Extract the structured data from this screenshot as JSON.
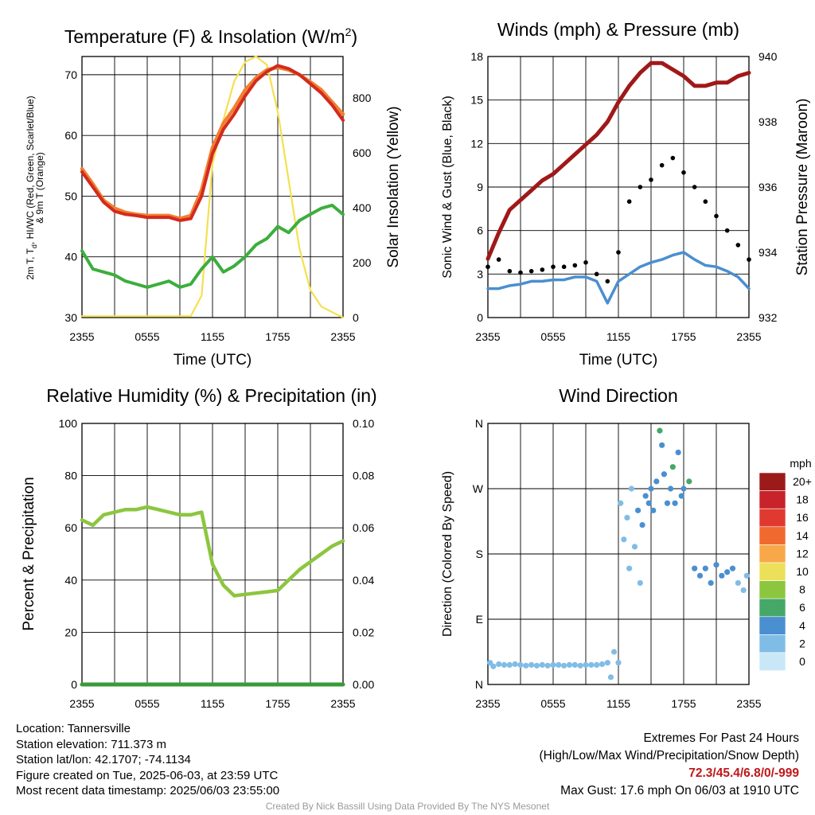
{
  "chart_data": [
    {
      "type": "line",
      "title": "Temperature (F) & Insolation (W/m²)",
      "xlabel": "Time (UTC)",
      "ylabel": "2m T, Td, HI/WC (Red, Green, Scarlet/Blue) & 9m T (Orange)",
      "ylabel_lines": [
        "2m T, T",
        "d",
        ", HI/WC (Red, Green, Scarlet/Blue)",
        "& 9m T (Orange)"
      ],
      "y2label": "Solar Insolation (Yellow)",
      "xticks": [
        "2355",
        "0555",
        "1155",
        "1755",
        "2355"
      ],
      "ylim": [
        30,
        73
      ],
      "yticks": [
        30,
        40,
        50,
        60,
        70
      ],
      "y2lim": [
        0,
        950
      ],
      "y2ticks": [
        0,
        200,
        400,
        600,
        800
      ],
      "x_hours": [
        0,
        1,
        2,
        3,
        4,
        5,
        6,
        7,
        8,
        9,
        10,
        11,
        12,
        13,
        14,
        15,
        16,
        17,
        18,
        19,
        20,
        21,
        22,
        23,
        24
      ],
      "series": [
        {
          "name": "2m T",
          "color": "#d42a1e",
          "axis": "left",
          "values": [
            54,
            51.5,
            49,
            47.5,
            47,
            46.8,
            46.5,
            46.5,
            46.5,
            46,
            46.3,
            50,
            57,
            61,
            63.5,
            66.5,
            69,
            70.5,
            71.5,
            71,
            70,
            68.5,
            67,
            65,
            62.5
          ]
        },
        {
          "name": "9m T",
          "color": "#f08030",
          "axis": "left",
          "values": [
            54.5,
            52,
            49.3,
            48,
            47.3,
            47,
            46.8,
            46.8,
            46.8,
            46.3,
            46.8,
            51,
            58,
            62,
            64.5,
            67.5,
            69.5,
            70.8,
            71.2,
            70.8,
            70,
            68.8,
            67.5,
            65.5,
            63.5
          ]
        },
        {
          "name": "Td",
          "color": "#3cae3c",
          "axis": "left",
          "values": [
            41,
            38,
            37.5,
            37,
            36,
            35.5,
            35,
            35.5,
            36,
            35,
            35.5,
            38,
            40,
            37.5,
            38.5,
            40,
            42,
            43,
            45,
            44,
            46,
            47,
            48,
            48.5,
            47
          ]
        },
        {
          "name": "Solar Insolation",
          "color": "#f5e050",
          "axis": "right",
          "values": [
            5,
            5,
            5,
            5,
            5,
            5,
            5,
            5,
            5,
            5,
            5,
            80,
            560,
            720,
            860,
            930,
            950,
            920,
            750,
            500,
            250,
            100,
            40,
            20,
            0
          ]
        }
      ]
    },
    {
      "type": "line",
      "title": "Winds (mph) & Pressure (mb)",
      "xlabel": "Time (UTC)",
      "ylabel": "Sonic Wind & Gust (Blue, Black)",
      "y2label": "Station Pressure (Maroon)",
      "xticks": [
        "2355",
        "0555",
        "1155",
        "1755",
        "2355"
      ],
      "ylim": [
        0,
        18
      ],
      "yticks": [
        0,
        3,
        6,
        9,
        12,
        15,
        18
      ],
      "y2lim": [
        932,
        940
      ],
      "y2ticks": [
        932,
        934,
        936,
        938,
        940
      ],
      "x_hours": [
        0,
        1,
        2,
        3,
        4,
        5,
        6,
        7,
        8,
        9,
        10,
        11,
        12,
        13,
        14,
        15,
        16,
        17,
        18,
        19,
        20,
        21,
        22,
        23,
        24
      ],
      "series": [
        {
          "name": "Sonic Wind",
          "color": "#4a8fd0",
          "axis": "left",
          "values": [
            2,
            2,
            2.2,
            2.3,
            2.5,
            2.5,
            2.6,
            2.6,
            2.8,
            2.8,
            2.5,
            1,
            2.5,
            3,
            3.5,
            3.8,
            4,
            4.3,
            4.5,
            4,
            3.6,
            3.5,
            3.2,
            2.8,
            2
          ]
        },
        {
          "name": "Gust",
          "color": "#000000",
          "axis": "left",
          "values": [
            3.5,
            4,
            3.2,
            3.1,
            3.2,
            3.3,
            3.5,
            3.5,
            3.6,
            3.8,
            3,
            2.5,
            4.5,
            8,
            9,
            9.5,
            10.5,
            11,
            10,
            9,
            8,
            7,
            6,
            5,
            4
          ]
        },
        {
          "name": "Station Pressure",
          "color": "#a01818",
          "axis": "right",
          "values": [
            933.8,
            934.6,
            935.3,
            935.6,
            935.9,
            936.2,
            936.4,
            936.7,
            937.0,
            937.3,
            937.6,
            938.0,
            938.6,
            939.1,
            939.5,
            939.8,
            939.8,
            939.6,
            939.4,
            939.1,
            939.1,
            939.2,
            939.2,
            939.4,
            939.5
          ]
        }
      ]
    },
    {
      "type": "line",
      "title": "Relative Humidity (%) & Precipitation (in)",
      "xlabel": "",
      "ylabel": "Percent & Precipitation",
      "xticks": [
        "2355",
        "0555",
        "1155",
        "1755",
        "2355"
      ],
      "ylim": [
        0,
        100
      ],
      "yticks": [
        0,
        20,
        40,
        60,
        80,
        100
      ],
      "y2lim": [
        0,
        0.1
      ],
      "y2ticks": [
        "0.00",
        "0.02",
        "0.04",
        "0.06",
        "0.08",
        "0.10"
      ],
      "x_hours": [
        0,
        1,
        2,
        3,
        4,
        5,
        6,
        7,
        8,
        9,
        10,
        11,
        12,
        13,
        14,
        15,
        16,
        17,
        18,
        19,
        20,
        21,
        22,
        23,
        24
      ],
      "series": [
        {
          "name": "Relative Humidity",
          "color": "#8cc63f",
          "axis": "left",
          "values": [
            63,
            61,
            65,
            66,
            67,
            67,
            68,
            67,
            66,
            65,
            65,
            66,
            46,
            38,
            34,
            34.5,
            35,
            35.5,
            36,
            40,
            44,
            47,
            50,
            53,
            55
          ]
        },
        {
          "name": "Precipitation",
          "color": "#3a9a3a",
          "axis": "right",
          "values": [
            0,
            0,
            0,
            0,
            0,
            0,
            0,
            0,
            0,
            0,
            0,
            0,
            0,
            0,
            0,
            0,
            0,
            0,
            0,
            0,
            0,
            0,
            0,
            0,
            0
          ]
        }
      ]
    },
    {
      "type": "scatter",
      "title": "Wind Direction",
      "xlabel": "",
      "ylabel": "Direction (Colored By Speed)",
      "xticks": [
        "2355",
        "0555",
        "1155",
        "1755",
        "2355"
      ],
      "ylim": [
        0,
        360
      ],
      "yticks": [
        "N",
        "E",
        "S",
        "W",
        "N"
      ],
      "legend_title": "mph",
      "legend_labels": [
        "20+",
        "18",
        "16",
        "14",
        "12",
        "10",
        "8",
        "6",
        "4",
        "2",
        "0"
      ],
      "legend_colors": [
        "#9b1b1b",
        "#c8222a",
        "#e03a30",
        "#f06a30",
        "#f8a848",
        "#ece05a",
        "#8cc63f",
        "#46a868",
        "#4a8fd0",
        "#80bde6",
        "#c8e8f8"
      ],
      "x_hours": [
        0.2,
        0.5,
        1,
        1.5,
        2,
        2.5,
        3,
        3.5,
        4,
        4.5,
        5,
        5.5,
        6,
        6.5,
        7,
        7.5,
        8,
        8.5,
        9,
        9.5,
        10,
        10.5,
        11,
        11.3,
        11.6,
        12,
        12.2,
        12.5,
        12.8,
        13,
        13.2,
        13.5,
        13.8,
        14,
        14.2,
        14.5,
        14.8,
        15,
        15.2,
        15.5,
        15.8,
        16,
        16.2,
        16.5,
        16.8,
        17,
        17.2,
        17.5,
        17.8,
        18,
        18.5,
        19,
        19.5,
        20,
        20.5,
        21,
        21.5,
        22,
        22.5,
        23,
        23.5,
        23.8
      ],
      "values": [
        30,
        25,
        28,
        27,
        27,
        28,
        27,
        26,
        27,
        26,
        27,
        26,
        27,
        27,
        26,
        27,
        27,
        26,
        27,
        27,
        27,
        28,
        30,
        10,
        45,
        30,
        250,
        200,
        230,
        160,
        270,
        190,
        240,
        140,
        220,
        260,
        250,
        270,
        240,
        280,
        350,
        330,
        290,
        250,
        270,
        300,
        250,
        320,
        260,
        270,
        280,
        160,
        150,
        160,
        140,
        165,
        150,
        155,
        160,
        140,
        130,
        150
      ],
      "speeds": [
        2,
        2,
        2,
        2,
        2,
        2,
        2,
        2,
        2,
        2,
        2,
        2,
        2,
        2,
        2,
        2,
        2,
        2,
        2,
        2,
        2,
        2,
        1,
        1,
        1,
        1,
        1,
        2,
        2,
        1,
        2,
        2,
        3,
        2,
        3,
        3,
        4,
        4,
        3,
        4,
        5,
        4,
        4,
        3,
        4,
        6,
        4,
        4,
        3,
        4,
        5,
        4,
        4,
        4,
        3,
        4,
        3,
        4,
        3,
        2,
        2,
        1
      ]
    }
  ],
  "info": {
    "location": "Location: Tannersville",
    "elevation": "Station elevation: 711.373 m",
    "latlon": "Station lat/lon: 42.1707; -74.1134",
    "created": "Figure created on Tue, 2025-06-03, at 23:59 UTC",
    "recent": "Most recent data timestamp: 2025/06/03 23:55:00"
  },
  "extremes": {
    "title": "Extremes For Past 24 Hours",
    "subtitle": "(High/Low/Max Wind/Precipitation/Snow Depth)",
    "values": "72.3/45.4/6.8/0/-999",
    "max_gust": "Max Gust: 17.6 mph On 06/03 at 1910 UTC"
  },
  "credit": "Created By Nick Bassill Using Data Provided By The NYS Mesonet"
}
